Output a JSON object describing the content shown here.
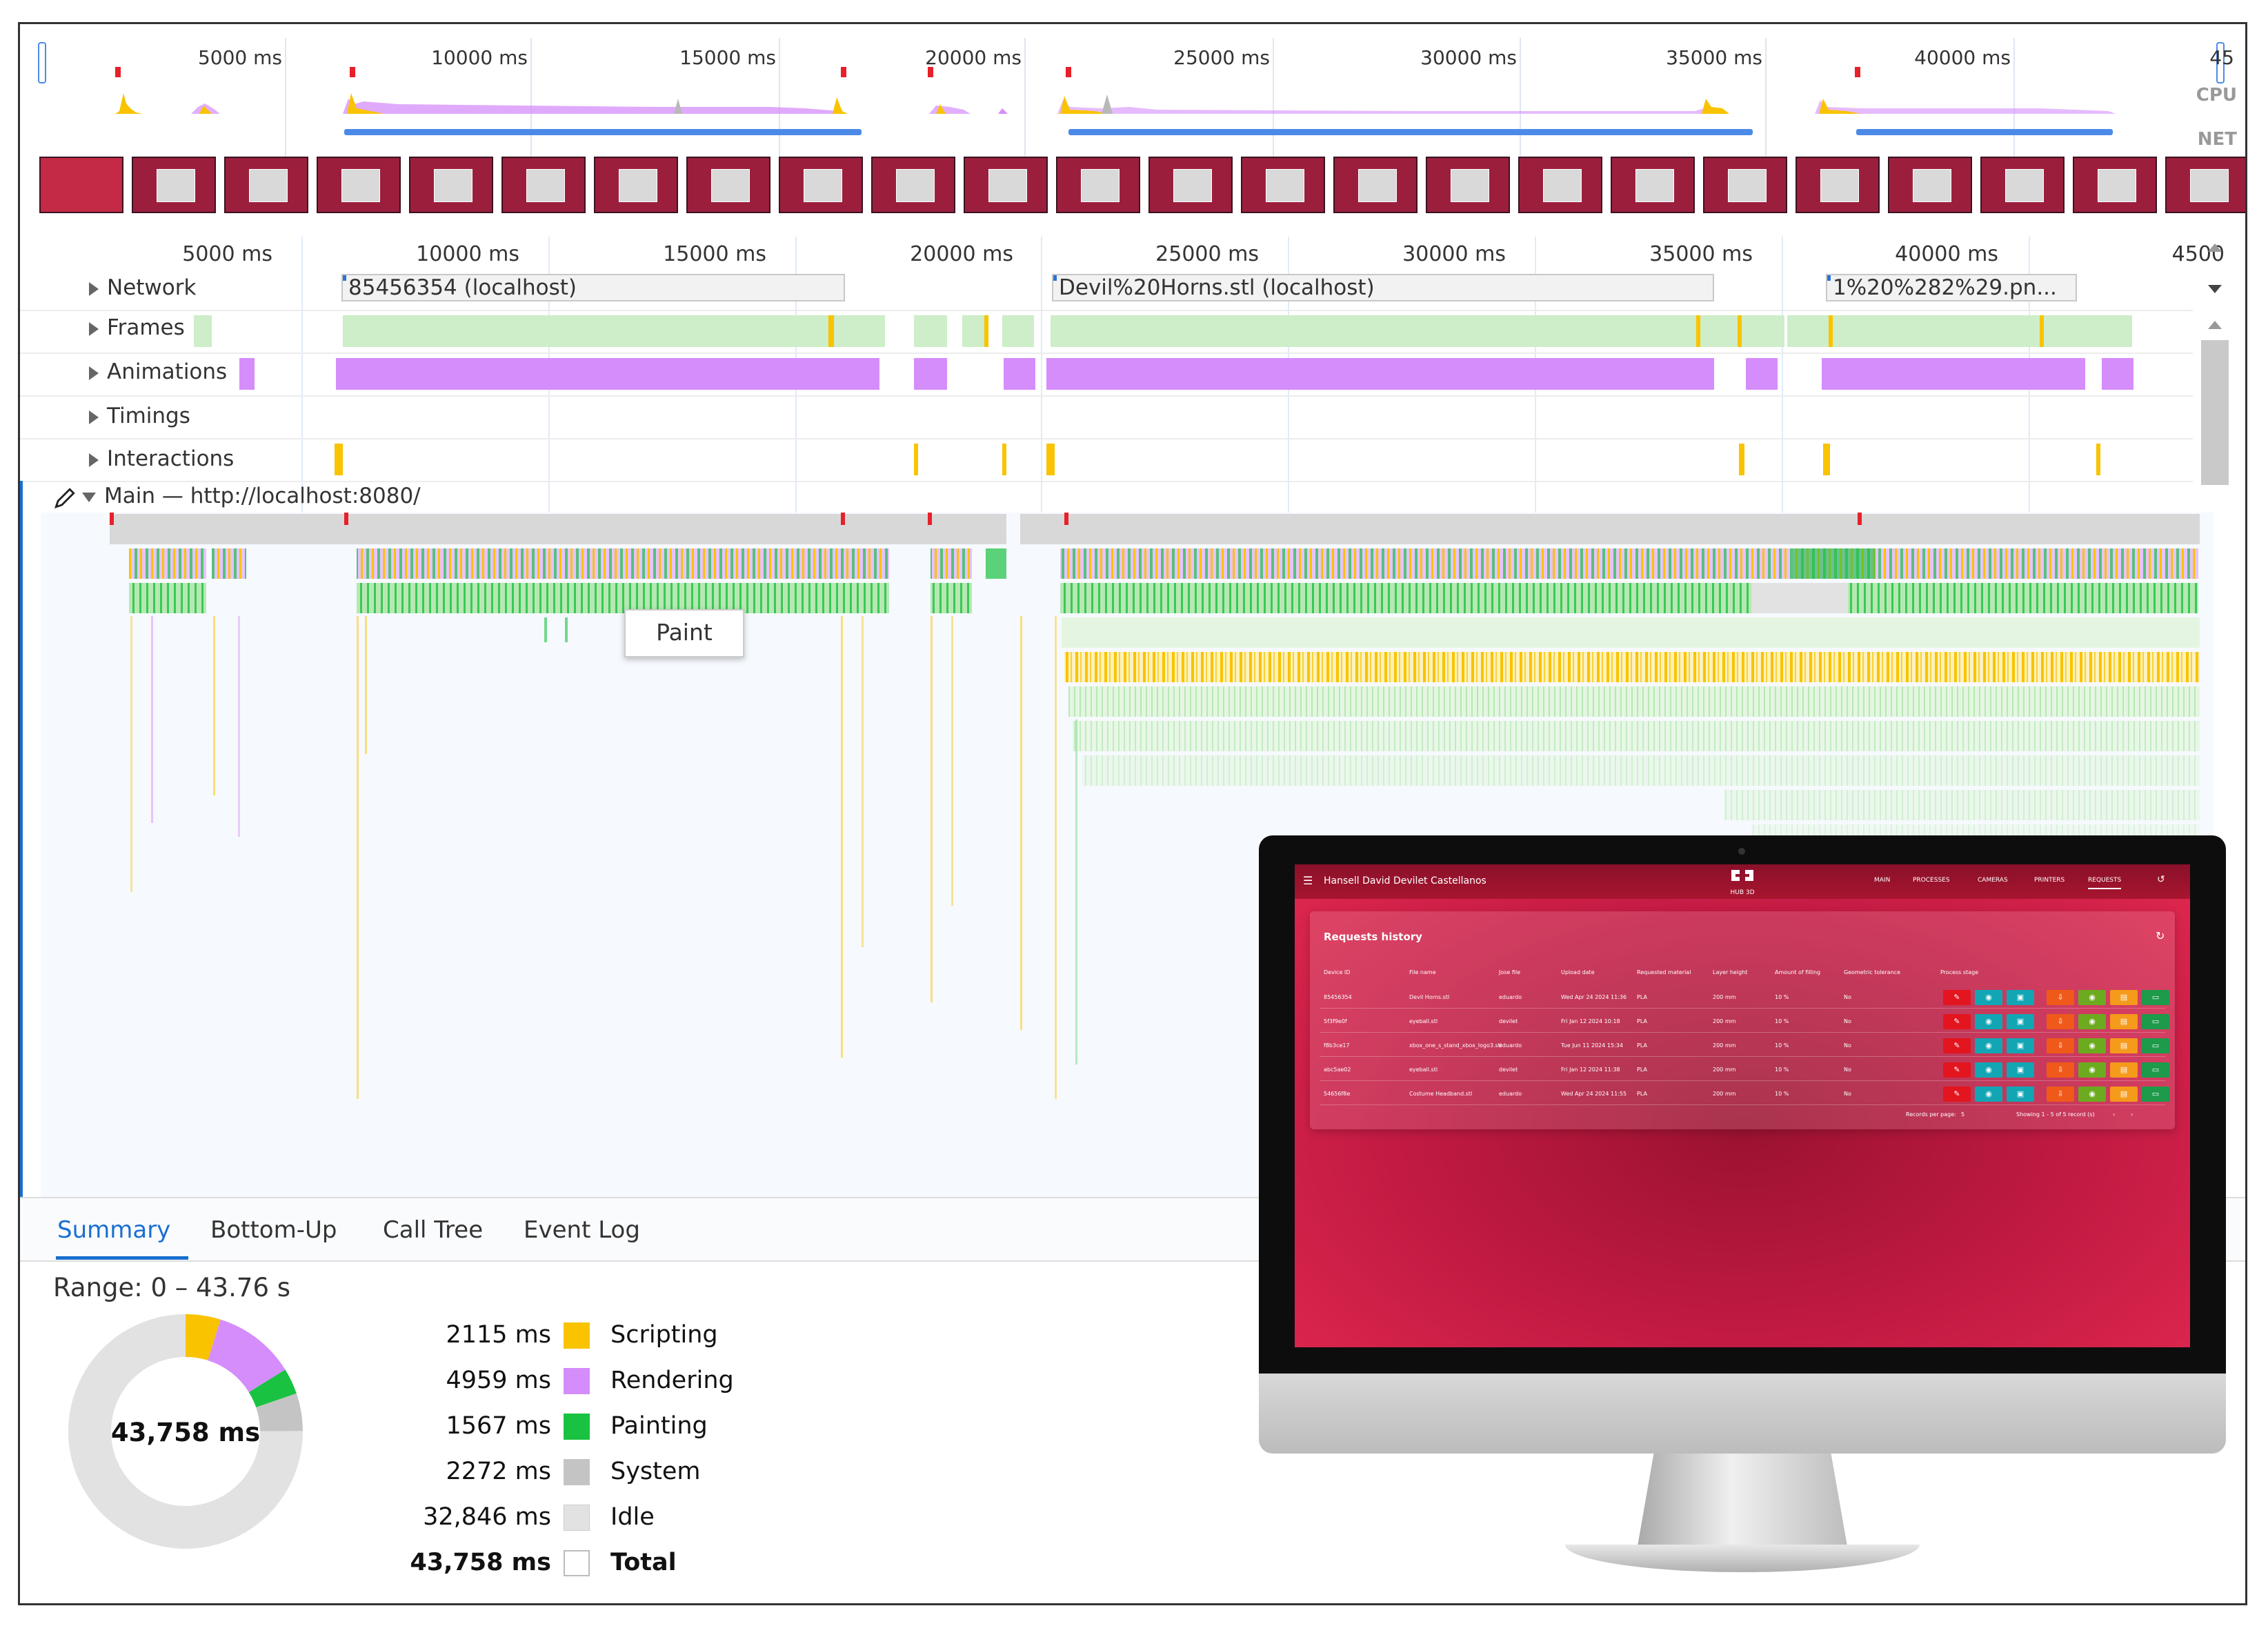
{
  "overview": {
    "tick_labels": [
      "5000 ms",
      "10000 ms",
      "15000 ms",
      "20000 ms",
      "25000 ms",
      "30000 ms",
      "35000 ms",
      "40000 ms",
      "45"
    ],
    "side_labels": {
      "cpu": "CPU",
      "net": "NET"
    }
  },
  "ruler": {
    "tick_labels": [
      "5000 ms",
      "10000 ms",
      "15000 ms",
      "20000 ms",
      "25000 ms",
      "30000 ms",
      "35000 ms",
      "40000 ms",
      "4500"
    ]
  },
  "tracks": {
    "network": {
      "label": "Network",
      "requests": [
        "85456354 (localhost)",
        "Devil%20Horns.stl (localhost)",
        "1%20%282%29.pn..."
      ]
    },
    "frames": {
      "label": "Frames"
    },
    "animations": {
      "label": "Animations"
    },
    "timings": {
      "label": "Timings"
    },
    "interactions": {
      "label": "Interactions"
    },
    "main": {
      "label": "Main — http://localhost:8080/"
    }
  },
  "tooltip": {
    "text": "Paint"
  },
  "bottom_tabs": [
    "Summary",
    "Bottom-Up",
    "Call Tree",
    "Event Log"
  ],
  "summary": {
    "range": "Range: 0 – 43.76 s",
    "donut_center": "43,758 ms",
    "rows": [
      {
        "value": "2115 ms",
        "label": "Scripting",
        "color": "#f9c300",
        "ms": 2115
      },
      {
        "value": "4959 ms",
        "label": "Rendering",
        "color": "#d58dfb",
        "ms": 4959
      },
      {
        "value": "1567 ms",
        "label": "Painting",
        "color": "#19c241",
        "ms": 1567
      },
      {
        "value": "2272 ms",
        "label": "System",
        "color": "#c4c4c4",
        "ms": 2272
      },
      {
        "value": "32,846 ms",
        "label": "Idle",
        "color": "#e2e2e2",
        "ms": 32846
      },
      {
        "value": "43,758 ms",
        "label": "Total",
        "color": "#ffffff",
        "ms": 43758
      }
    ]
  },
  "colors": {
    "scripting": "#f9c300",
    "rendering": "#d58dfb",
    "painting": "#19c241",
    "frames": "#cdeec8",
    "accent": "#1a6fd0"
  },
  "app": {
    "user_name": "Hansell David Devilet Castellanos",
    "logo_text": "HUB 3D",
    "nav": [
      "MAIN",
      "PROCESSES",
      "CAMERAS",
      "PRINTERS",
      "REQUESTS"
    ],
    "card_title": "Requests history",
    "columns": [
      "Device ID",
      "File name",
      "Jose file",
      "Upload date",
      "Requested material",
      "Layer height",
      "Amount of filling",
      "Geometric tolerance",
      "Process stage"
    ],
    "rows": [
      [
        "85456354",
        "Devil Horns.stl",
        "eduardo",
        "Wed Apr 24 2024 11:36",
        "PLA",
        "200 mm",
        "10 %",
        "No"
      ],
      [
        "5f3f9e0f",
        "eyeball.stl",
        "devilet",
        "Fri Jan 12 2024 10:18",
        "PLA",
        "200 mm",
        "10 %",
        "No"
      ],
      [
        "f8b3ce17",
        "xbox_one_s_stand_xbox_logo3.stl",
        "eduardo",
        "Tue Jun 11 2024 15:34",
        "PLA",
        "200 mm",
        "10 %",
        "No"
      ],
      [
        "abc5ae02",
        "eyeball.stl",
        "devilet",
        "Fri Jan 12 2024 11:38",
        "PLA",
        "200 mm",
        "10 %",
        "No"
      ],
      [
        "54656f8e",
        "Costume Headband.stl",
        "eduardo",
        "Wed Apr 24 2024 11:55",
        "PLA",
        "200 mm",
        "10 %",
        "No"
      ]
    ],
    "footer": {
      "rows_per_page_label": "Records per page:",
      "rows_per_page_value": "5",
      "showing": "Showing 1 - 5 of 5 record (s)"
    }
  }
}
